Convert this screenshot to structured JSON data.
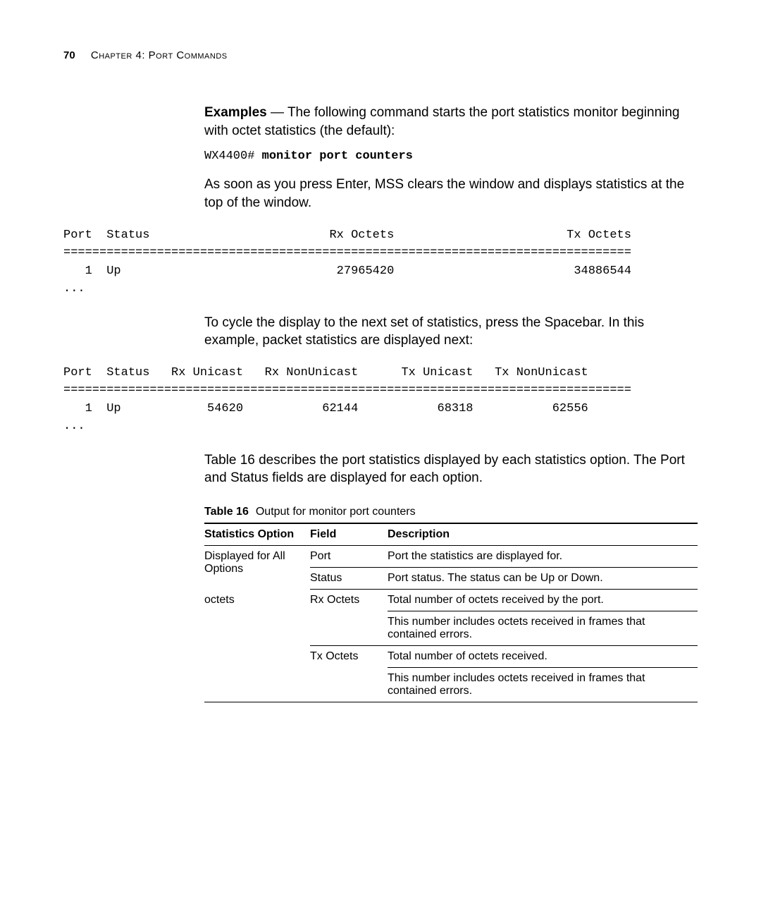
{
  "page_number": "70",
  "chapter_label": "Chapter 4: Port Commands",
  "para1_lead": "Examples",
  "para1_rest": " — The following command starts the port statistics monitor beginning with octet statistics (the default):",
  "cmd_prompt": "WX4400# ",
  "cmd_text": "monitor port counters",
  "para2": "As soon as you press Enter, MSS clears the window and displays statistics at the top of the window.",
  "cli1_line1": "Port  Status                         Rx Octets                        Tx Octets",
  "cli1_line2": "===============================================================================",
  "cli1_line3": "   1  Up                              27965420                         34886544",
  "cli1_line4": "...",
  "para3": "To cycle the display to the next set of statistics, press the Spacebar. In this example, packet statistics are displayed next:",
  "cli2_line1": "Port  Status   Rx Unicast   Rx NonUnicast      Tx Unicast   Tx NonUnicast",
  "cli2_line2": "===============================================================================",
  "cli2_line3": "   1  Up            54620           62144           68318           62556",
  "cli2_line4": "...",
  "para4": "Table 16 describes the port statistics displayed by each statistics option. The Port and Status fields are displayed for each option.",
  "table_caption_bold": "Table 16",
  "table_caption_rest": "Output for monitor port counters",
  "th1": "Statistics Option",
  "th2": "Field",
  "th3": "Description",
  "r1c1a": "Displayed for All",
  "r1c1b": "Options",
  "r1c2": "Port",
  "r1c3": "Port the statistics are displayed for.",
  "r2c2": "Status",
  "r2c3": "Port status. The status can be Up or Down.",
  "r3c1": "octets",
  "r3c2": "Rx Octets",
  "r3c3": "Total number of octets received by the port.",
  "r4c3": "This number includes octets received in frames that contained errors.",
  "r5c2": "Tx Octets",
  "r5c3": "Total number of octets received.",
  "r6c3": "This number includes octets received in frames that contained errors."
}
